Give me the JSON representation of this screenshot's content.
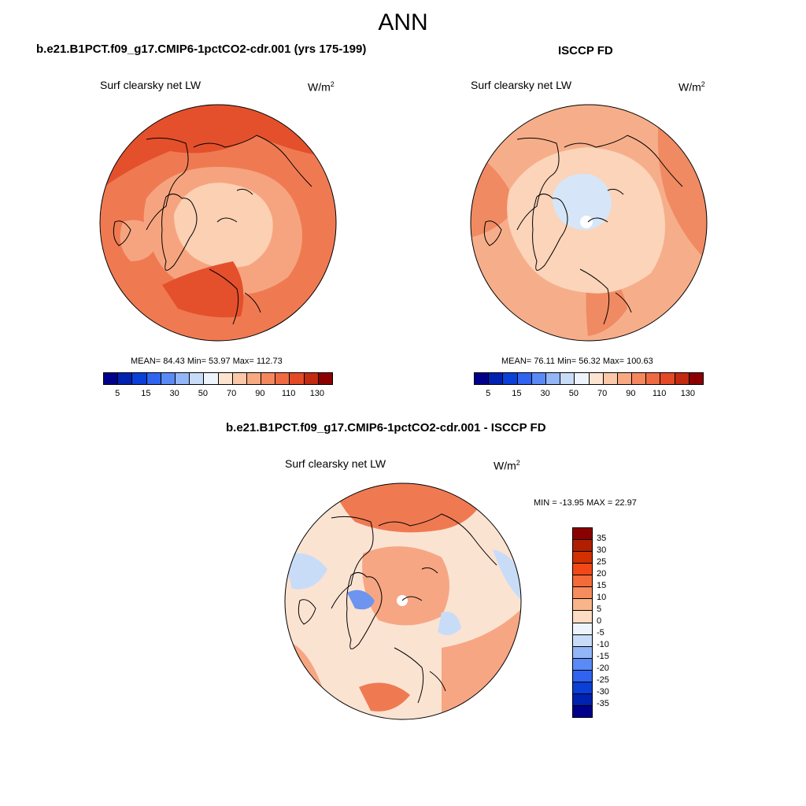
{
  "main_title": "ANN",
  "panels": [
    {
      "title": "b.e21.B1PCT.f09_g17.CMIP6-1pctCO2-cdr.001 (yrs 175-199)",
      "variable": "Surf clearsky net LW",
      "units_base": "W/m",
      "units_exp": "2",
      "stats": "MEAN=  84.43  Min=  53.97  Max= 112.73"
    },
    {
      "title": "ISCCP FD",
      "variable": "Surf clearsky net LW",
      "units_base": "W/m",
      "units_exp": "2",
      "stats": "MEAN=  76.11  Min=  56.32  Max= 100.63"
    },
    {
      "title": "b.e21.B1PCT.f09_g17.CMIP6-1pctCO2-cdr.001 - ISCCP FD",
      "variable": "Surf clearsky net LW",
      "units_base": "W/m",
      "units_exp": "2",
      "stats": "MIN = -13.95 MAX =  22.97"
    }
  ],
  "colorbar_abs": {
    "colors": [
      "#00008b",
      "#0022b0",
      "#0a3fd8",
      "#2f63f0",
      "#5a8af5",
      "#92b6f7",
      "#c8dcf8",
      "#eef4fb",
      "#fde4d0",
      "#fbc8a8",
      "#f8a982",
      "#f5875e",
      "#ef6a42",
      "#e44a26",
      "#c22a12",
      "#8b0000"
    ],
    "ticks": [
      "5",
      "15",
      "30",
      "50",
      "70",
      "90",
      "110",
      "130"
    ]
  },
  "colorbar_diff": {
    "colors": [
      "#8b0000",
      "#b02000",
      "#d23000",
      "#f24818",
      "#f56a3a",
      "#f78c5e",
      "#f9b48a",
      "#fcdcc2",
      "#eef4fb",
      "#c8dcf8",
      "#92b6f7",
      "#5a8af5",
      "#2f63f0",
      "#0a3fd8",
      "#0022b0",
      "#00008b"
    ],
    "ticks": [
      "35",
      "30",
      "25",
      "20",
      "15",
      "10",
      "5",
      "0",
      "-5",
      "-10",
      "-15",
      "-20",
      "-25",
      "-30",
      "-35"
    ]
  },
  "map_colors": {
    "pole_model": "#fbd0b3",
    "mid_model": "#f6a47f",
    "outer_model": "#ef7a52",
    "hot_model": "#e4502c",
    "pole_obs": "#d6e6f8",
    "mid_obs": "#fbd4ba",
    "outer_obs": "#f6ae8a",
    "hot_obs": "#f08a62",
    "diff_base": "#fbe3d2",
    "diff_warm": "#f7a683",
    "diff_hot": "#ef7a52",
    "diff_cool": "#c8dcf8",
    "diff_cold": "#6d94ee"
  }
}
